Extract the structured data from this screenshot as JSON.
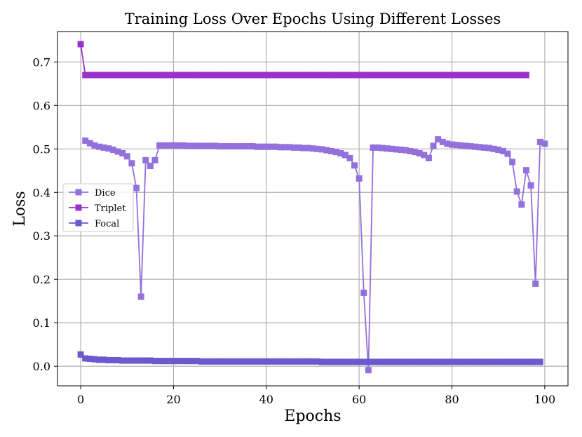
{
  "chart_data": {
    "type": "line",
    "title": "Training Loss Over Epochs Using Different Losses",
    "xlabel": "Epochs",
    "ylabel": "Loss",
    "xlim": [
      -5,
      105
    ],
    "ylim": [
      -0.045,
      0.77
    ],
    "xticks": [
      0,
      20,
      40,
      60,
      80,
      100
    ],
    "yticks": [
      0.0,
      0.1,
      0.2,
      0.3,
      0.4,
      0.5,
      0.6,
      0.7
    ],
    "xtick_labels": [
      "0",
      "20",
      "40",
      "60",
      "80",
      "100"
    ],
    "ytick_labels": [
      "0.0",
      "0.1",
      "0.2",
      "0.3",
      "0.4",
      "0.5",
      "0.6",
      "0.7"
    ],
    "grid": true,
    "legend_position": "center-left",
    "marker": "square",
    "series": [
      {
        "name": "Dice",
        "color": "#9370DB",
        "x": [
          1,
          2,
          3,
          4,
          5,
          6,
          7,
          8,
          9,
          10,
          11,
          12,
          13,
          14,
          15,
          16,
          17,
          18,
          19,
          20,
          21,
          22,
          23,
          24,
          25,
          26,
          27,
          28,
          29,
          30,
          31,
          32,
          33,
          34,
          35,
          36,
          37,
          38,
          39,
          40,
          41,
          42,
          43,
          44,
          45,
          46,
          47,
          48,
          49,
          50,
          51,
          52,
          53,
          54,
          55,
          56,
          57,
          58,
          59,
          60,
          61,
          62,
          63,
          64,
          65,
          66,
          67,
          68,
          69,
          70,
          71,
          72,
          73,
          74,
          75,
          76,
          77,
          78,
          79,
          80,
          81,
          82,
          83,
          84,
          85,
          86,
          87,
          88,
          89,
          90,
          91,
          92,
          93,
          94,
          95,
          96,
          97,
          98,
          99,
          100
        ],
        "y": [
          0.519,
          0.513,
          0.508,
          0.505,
          0.503,
          0.501,
          0.498,
          0.494,
          0.49,
          0.483,
          0.467,
          0.41,
          0.16,
          0.474,
          0.461,
          0.474,
          0.508,
          0.508,
          0.508,
          0.508,
          0.508,
          0.508,
          0.507,
          0.507,
          0.507,
          0.507,
          0.507,
          0.507,
          0.507,
          0.506,
          0.506,
          0.506,
          0.506,
          0.506,
          0.506,
          0.506,
          0.506,
          0.505,
          0.505,
          0.505,
          0.505,
          0.505,
          0.504,
          0.504,
          0.504,
          0.503,
          0.503,
          0.502,
          0.502,
          0.501,
          0.5,
          0.499,
          0.497,
          0.495,
          0.493,
          0.49,
          0.486,
          0.479,
          0.462,
          0.432,
          0.169,
          -0.009,
          0.503,
          0.503,
          0.502,
          0.501,
          0.5,
          0.499,
          0.498,
          0.497,
          0.495,
          0.493,
          0.49,
          0.486,
          0.479,
          0.507,
          0.522,
          0.516,
          0.512,
          0.51,
          0.509,
          0.508,
          0.507,
          0.506,
          0.505,
          0.504,
          0.503,
          0.502,
          0.5,
          0.498,
          0.495,
          0.489,
          0.47,
          0.402,
          0.372,
          0.451,
          0.416,
          0.19,
          0.516,
          0.512
        ]
      },
      {
        "name": "Triplet",
        "color": "#9932CC",
        "x": [
          0,
          1,
          2,
          3,
          4,
          5,
          6,
          7,
          8,
          9,
          10,
          11,
          12,
          13,
          14,
          15,
          16,
          17,
          18,
          19,
          20,
          21,
          22,
          23,
          24,
          25,
          26,
          27,
          28,
          29,
          30,
          31,
          32,
          33,
          34,
          35,
          36,
          37,
          38,
          39,
          40,
          41,
          42,
          43,
          44,
          45,
          46,
          47,
          48,
          49,
          50,
          51,
          52,
          53,
          54,
          55,
          56,
          57,
          58,
          59,
          60,
          61,
          62,
          63,
          64,
          65,
          66,
          67,
          68,
          69,
          70,
          71,
          72,
          73,
          74,
          75,
          76,
          77,
          78,
          79,
          80,
          81,
          82,
          83,
          84,
          85,
          86,
          87,
          88,
          89,
          90,
          91,
          92,
          93,
          94,
          95,
          96
        ],
        "y": [
          0.741,
          0.67,
          0.67,
          0.67,
          0.67,
          0.67,
          0.67,
          0.67,
          0.67,
          0.67,
          0.67,
          0.67,
          0.67,
          0.67,
          0.67,
          0.67,
          0.67,
          0.67,
          0.67,
          0.67,
          0.67,
          0.67,
          0.67,
          0.67,
          0.67,
          0.67,
          0.67,
          0.67,
          0.67,
          0.67,
          0.67,
          0.67,
          0.67,
          0.67,
          0.67,
          0.67,
          0.67,
          0.67,
          0.67,
          0.67,
          0.67,
          0.67,
          0.67,
          0.67,
          0.67,
          0.67,
          0.67,
          0.67,
          0.67,
          0.67,
          0.67,
          0.67,
          0.67,
          0.67,
          0.67,
          0.67,
          0.67,
          0.67,
          0.67,
          0.67,
          0.67,
          0.67,
          0.67,
          0.67,
          0.67,
          0.67,
          0.67,
          0.67,
          0.67,
          0.67,
          0.67,
          0.67,
          0.67,
          0.67,
          0.67,
          0.67,
          0.67,
          0.67,
          0.67,
          0.67,
          0.67,
          0.67,
          0.67,
          0.67,
          0.67,
          0.67,
          0.67,
          0.67,
          0.67,
          0.67,
          0.67,
          0.67,
          0.67,
          0.67,
          0.67,
          0.67,
          0.67
        ]
      },
      {
        "name": "Focal",
        "color": "#6A5ACD",
        "x": [
          0,
          1,
          2,
          3,
          4,
          5,
          6,
          7,
          8,
          9,
          10,
          11,
          12,
          13,
          14,
          15,
          16,
          17,
          18,
          19,
          20,
          21,
          22,
          23,
          24,
          25,
          26,
          27,
          28,
          29,
          30,
          31,
          32,
          33,
          34,
          35,
          36,
          37,
          38,
          39,
          40,
          41,
          42,
          43,
          44,
          45,
          46,
          47,
          48,
          49,
          50,
          51,
          52,
          53,
          54,
          55,
          56,
          57,
          58,
          59,
          60,
          61,
          62,
          63,
          64,
          65,
          66,
          67,
          68,
          69,
          70,
          71,
          72,
          73,
          74,
          75,
          76,
          77,
          78,
          79,
          80,
          81,
          82,
          83,
          84,
          85,
          86,
          87,
          88,
          89,
          90,
          91,
          92,
          93,
          94,
          95,
          96,
          97,
          98,
          99
        ],
        "y": [
          0.027,
          0.018,
          0.017,
          0.016,
          0.015,
          0.015,
          0.014,
          0.014,
          0.014,
          0.013,
          0.013,
          0.013,
          0.013,
          0.013,
          0.013,
          0.013,
          0.012,
          0.012,
          0.012,
          0.012,
          0.012,
          0.012,
          0.012,
          0.012,
          0.012,
          0.012,
          0.011,
          0.011,
          0.011,
          0.011,
          0.011,
          0.011,
          0.011,
          0.011,
          0.011,
          0.011,
          0.011,
          0.011,
          0.011,
          0.011,
          0.011,
          0.011,
          0.011,
          0.011,
          0.011,
          0.011,
          0.011,
          0.011,
          0.011,
          0.011,
          0.011,
          0.011,
          0.01,
          0.01,
          0.01,
          0.01,
          0.01,
          0.01,
          0.01,
          0.01,
          0.01,
          0.01,
          0.01,
          0.01,
          0.01,
          0.01,
          0.01,
          0.01,
          0.01,
          0.01,
          0.01,
          0.01,
          0.01,
          0.01,
          0.01,
          0.01,
          0.01,
          0.01,
          0.01,
          0.01,
          0.01,
          0.01,
          0.01,
          0.01,
          0.01,
          0.01,
          0.01,
          0.01,
          0.01,
          0.01,
          0.01,
          0.01,
          0.01,
          0.01,
          0.01,
          0.01,
          0.01,
          0.01,
          0.01,
          0.01
        ]
      }
    ]
  }
}
